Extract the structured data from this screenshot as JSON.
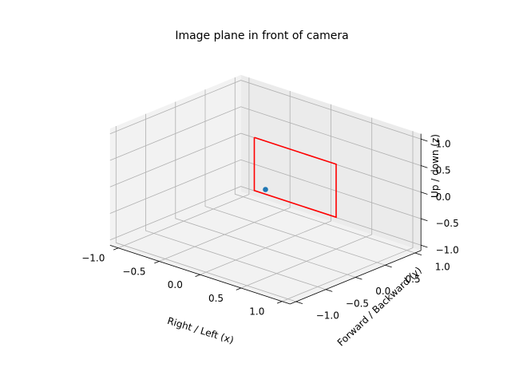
{
  "chart_data": {
    "type": "line3d",
    "title": "Image plane in front of camera",
    "xlabel": "Right / Left (x)",
    "ylabel": "Forward / Backward (y)",
    "zlabel": "Up / down (z)",
    "xlim": [
      -1.0,
      1.0
    ],
    "ylim": [
      -1.0,
      1.0
    ],
    "zlim": [
      -1.0,
      1.0
    ],
    "xticks": [
      "−1.0",
      "−0.5",
      "0.0",
      "0.5",
      "1.0"
    ],
    "yticks": [
      "−1.0",
      "−0.5",
      "0.0",
      "0.5",
      "1.0"
    ],
    "zticks": [
      "−1.0",
      "−0.5",
      "0.0",
      "0.5",
      "1.0"
    ],
    "grid": true,
    "series": [
      {
        "kind": "line",
        "color": "#ff0000",
        "points": [
          {
            "x": -0.5,
            "y": 0.5,
            "z": 0.5
          },
          {
            "x": 0.5,
            "y": 0.5,
            "z": 0.5
          },
          {
            "x": 0.5,
            "y": 0.5,
            "z": -0.5
          },
          {
            "x": -0.5,
            "y": 0.5,
            "z": -0.5
          },
          {
            "x": -0.5,
            "y": 0.5,
            "z": 0.5
          }
        ]
      },
      {
        "kind": "scatter",
        "color": "#1f77b4",
        "points": [
          {
            "x": 0.0,
            "y": 0.0,
            "z": 0.0
          }
        ]
      }
    ]
  }
}
